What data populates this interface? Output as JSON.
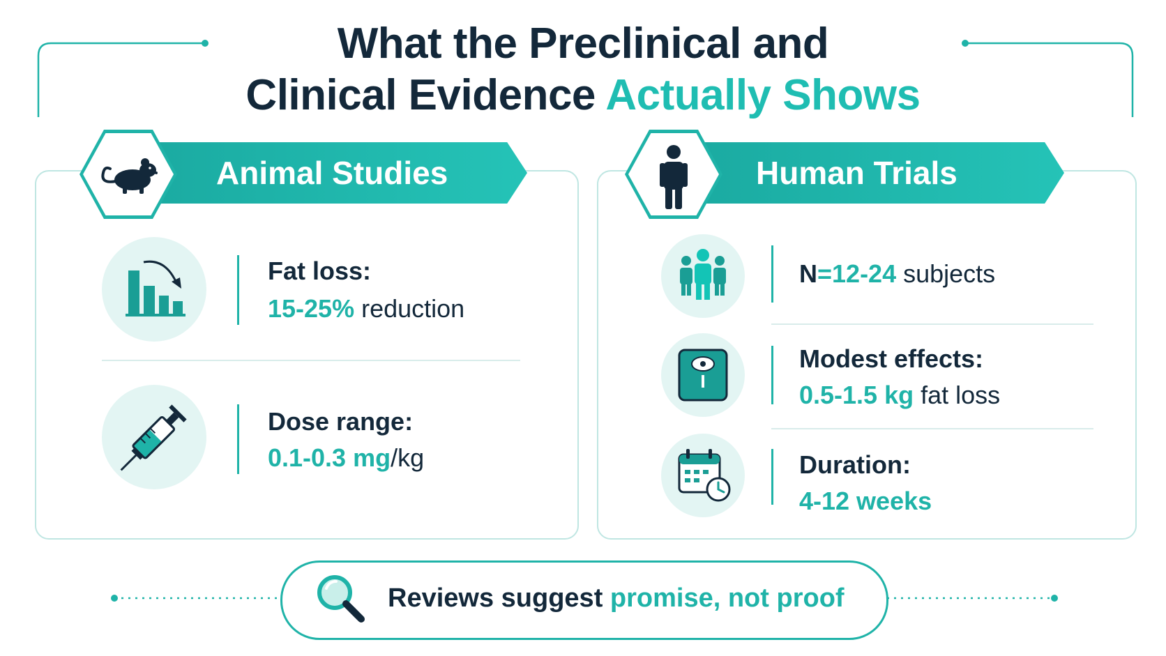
{
  "title": {
    "line1": "What the Preclinical and",
    "line2_prefix": "Clinical Evidence ",
    "line2_accent": "Actually Shows"
  },
  "colors": {
    "accent": "#1fb3a8",
    "dark": "#13283a",
    "soft": "#e3f5f3"
  },
  "animal": {
    "header": "Animal Studies",
    "icon": "rat-icon",
    "stats": [
      {
        "icon": "bar-chart-decline-icon",
        "label": "Fat loss:",
        "value_accent": "15-25%",
        "value_rest": " reduction"
      },
      {
        "icon": "syringe-icon",
        "label": "Dose range:",
        "value_accent": "0.1-0.3 mg",
        "value_rest": "/kg"
      }
    ]
  },
  "human": {
    "header": "Human Trials",
    "icon": "person-icon",
    "stats": [
      {
        "icon": "people-group-icon",
        "label_prefix": "N",
        "label_accent": "=12-24",
        "label_rest": " subjects"
      },
      {
        "icon": "scale-icon",
        "label": "Modest effects:",
        "value_accent": "0.5-1.5 kg",
        "value_rest": " fat loss"
      },
      {
        "icon": "calendar-clock-icon",
        "label": "Duration:",
        "value_accent": "4-12 weeks"
      }
    ]
  },
  "footer": {
    "icon": "magnifier-icon",
    "text_prefix": "Reviews suggest ",
    "text_accent": "promise, not proof"
  }
}
